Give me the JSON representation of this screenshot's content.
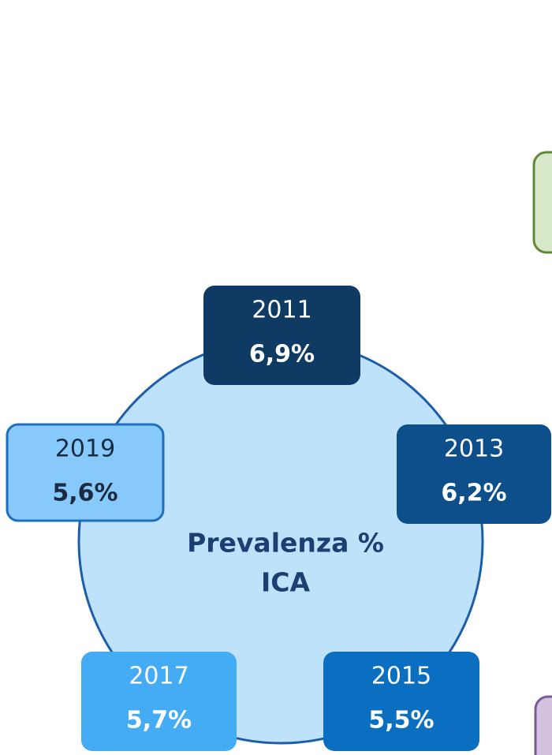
{
  "center": {
    "lines": [
      "Prevalenza %",
      "ICA"
    ]
  },
  "nodes": [
    {
      "year": "2011",
      "value": "6,9%"
    },
    {
      "year": "2013",
      "value": "6,2%"
    },
    {
      "year": "2015",
      "value": "5,5%"
    },
    {
      "year": "2017",
      "value": "5,7%"
    },
    {
      "year": "2019",
      "value": "5,6%"
    }
  ]
}
